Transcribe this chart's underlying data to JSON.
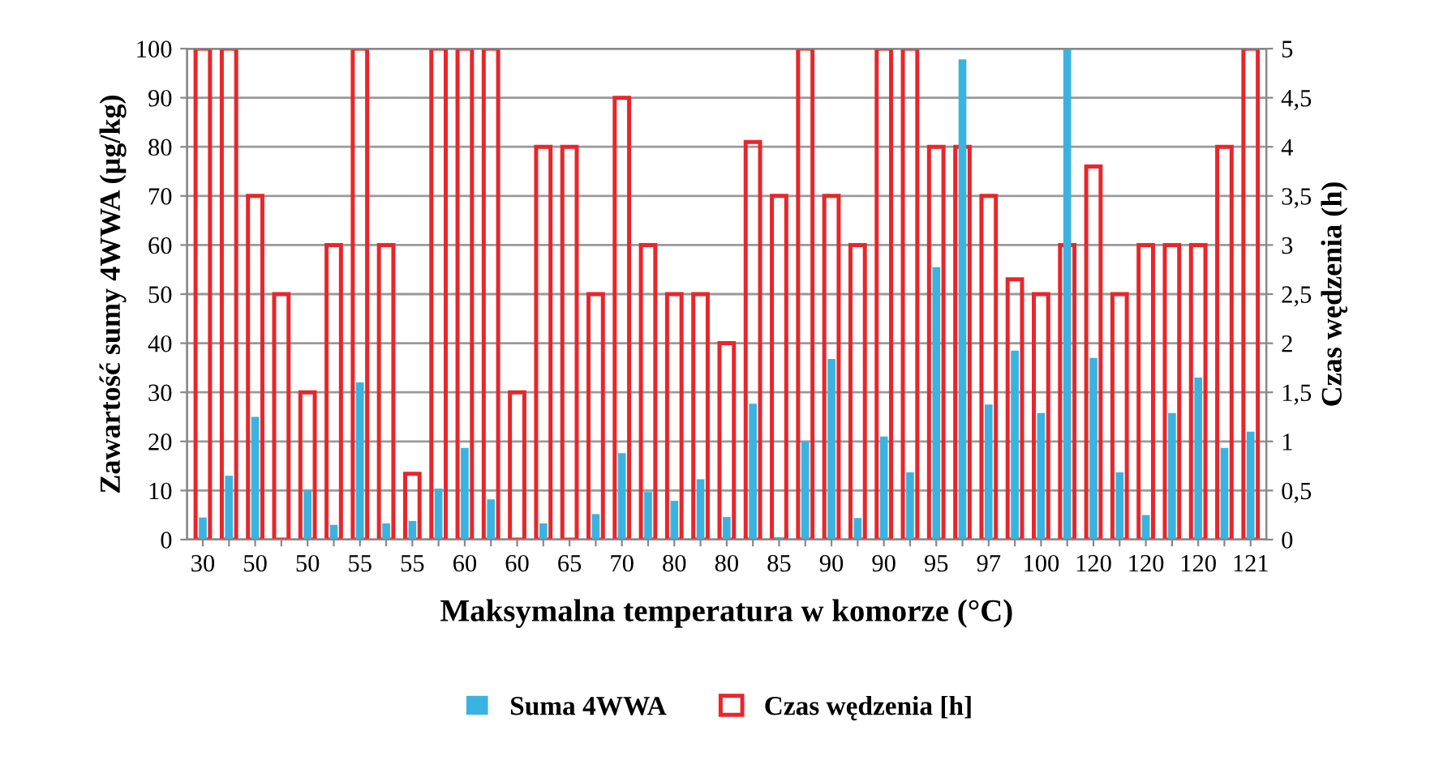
{
  "chart_data": {
    "type": "bar",
    "xlabel": "Maksymalna temperatura w komorze (°C)",
    "ylabel": "Zawartość sumy 4WWA (µg/kg)",
    "y2label": "Czas wędzenia (h)",
    "categories": [
      "30",
      null,
      "50",
      null,
      "50",
      null,
      "55",
      null,
      "55",
      null,
      "60",
      null,
      "60",
      null,
      "65",
      null,
      "70",
      null,
      "80",
      null,
      "80",
      null,
      "85",
      null,
      "90",
      null,
      "90",
      null,
      "95",
      null,
      "97",
      null,
      "100",
      null,
      "120",
      null,
      "120",
      null,
      "120",
      null,
      "121"
    ],
    "series": [
      {
        "name": "Suma 4WWA",
        "color": "#3bb3e0",
        "axis": "y",
        "values": [
          4.5,
          13,
          25,
          0,
          10,
          3,
          32,
          3.3,
          3.8,
          10.4,
          18.7,
          8.2,
          0,
          3.3,
          0,
          5.2,
          17.6,
          9.7,
          7.9,
          12.3,
          4.6,
          27.7,
          0.5,
          20,
          36.8,
          4.4,
          21,
          13.7,
          55.5,
          97.8,
          27.5,
          38.5,
          25.8,
          100,
          37,
          13.7,
          5,
          25.8,
          33,
          18.7,
          22
        ]
      },
      {
        "name": "Czas wędzenia [h]",
        "color": "#e8262b",
        "axis": "y2",
        "values": [
          5,
          5,
          3.5,
          2.5,
          1.5,
          3,
          5,
          3,
          0.67,
          5,
          5,
          5,
          1.5,
          4,
          4,
          2.5,
          4.5,
          3,
          2.5,
          2.5,
          2,
          4.05,
          3.5,
          5,
          3.5,
          3,
          5,
          5,
          4,
          4,
          3.5,
          2.65,
          2.5,
          3,
          3.8,
          2.5,
          3,
          3,
          3,
          4,
          5
        ]
      }
    ],
    "ylim": [
      0,
      100
    ],
    "yticks": [
      0,
      10,
      20,
      30,
      40,
      50,
      60,
      70,
      80,
      90,
      100
    ],
    "y2lim": [
      0,
      5
    ],
    "y2ticks": [
      0,
      {
        "value": 0.5,
        "label": "0,5"
      },
      1,
      {
        "value": 1.5,
        "label": "1,5"
      },
      2,
      {
        "value": 2.5,
        "label": "2,5"
      },
      3,
      {
        "value": 3.5,
        "label": "3,5"
      },
      4,
      {
        "value": 4.5,
        "label": "4,5"
      },
      5
    ],
    "grid": "y",
    "legend": "bottom"
  }
}
